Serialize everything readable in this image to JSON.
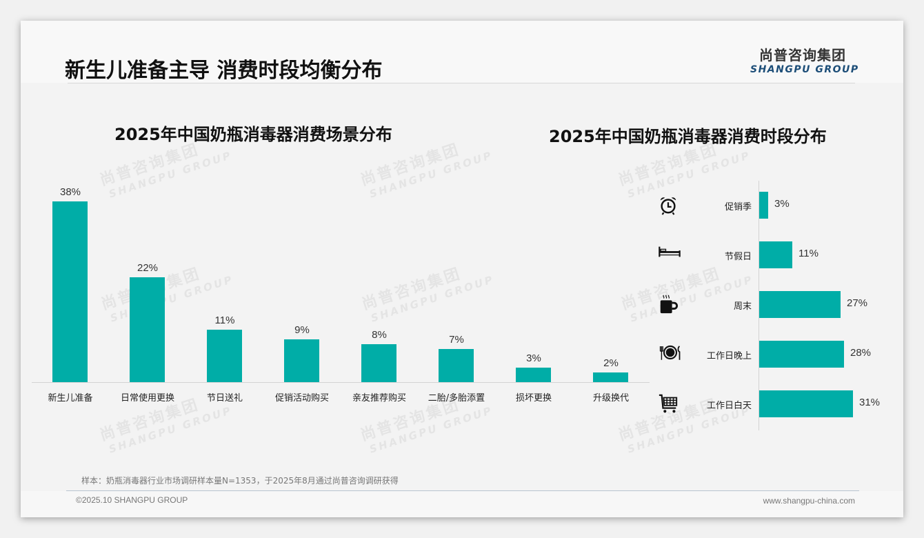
{
  "header": {
    "title": "新生儿准备主导 消费时段均衡分布",
    "logo_cn": "尚普咨询集团",
    "logo_en": "SHANGPU GROUP"
  },
  "watermark": {
    "cn": "尚普咨询集团",
    "en": "SHANGPU GROUP"
  },
  "colors": {
    "bar": "#00ada7",
    "axis": "#d3d3d3",
    "logo_en": "#1d4e78"
  },
  "chart_data": [
    {
      "type": "bar",
      "orientation": "vertical",
      "title": "2025年中国奶瓶消毒器消费场景分布",
      "categories": [
        "新生儿准备",
        "日常使用更换",
        "节日送礼",
        "促销活动购买",
        "亲友推荐购买",
        "二胎/多胎添置",
        "损坏更换",
        "升级换代"
      ],
      "values": [
        38,
        22,
        11,
        9,
        8,
        7,
        3,
        2
      ],
      "value_labels": [
        "38%",
        "22%",
        "11%",
        "9%",
        "8%",
        "7%",
        "3%",
        "2%"
      ],
      "unit": "%",
      "xlabel": "",
      "ylabel": "",
      "grid": false,
      "legend": null
    },
    {
      "type": "bar",
      "orientation": "horizontal",
      "title": "2025年中国奶瓶消毒器消费时段分布",
      "categories": [
        "促销季",
        "节假日",
        "周末",
        "工作日晚上",
        "工作日白天"
      ],
      "icons": [
        "alarm-clock-icon",
        "bed-icon",
        "coffee-mug-icon",
        "plate-cutlery-icon",
        "shopping-cart-icon"
      ],
      "values": [
        3,
        11,
        27,
        28,
        31
      ],
      "value_labels": [
        "3%",
        "11%",
        "27%",
        "28%",
        "31%"
      ],
      "unit": "%",
      "xlabel": "",
      "ylabel": "",
      "grid": false,
      "legend": null
    }
  ],
  "footer": {
    "note": "样本：奶瓶消毒器行业市场调研样本量N=1353，于2025年8月通过尚普咨询调研获得",
    "copyright": "©2025.10 SHANGPU GROUP",
    "website": "www.shangpu-china.com"
  }
}
